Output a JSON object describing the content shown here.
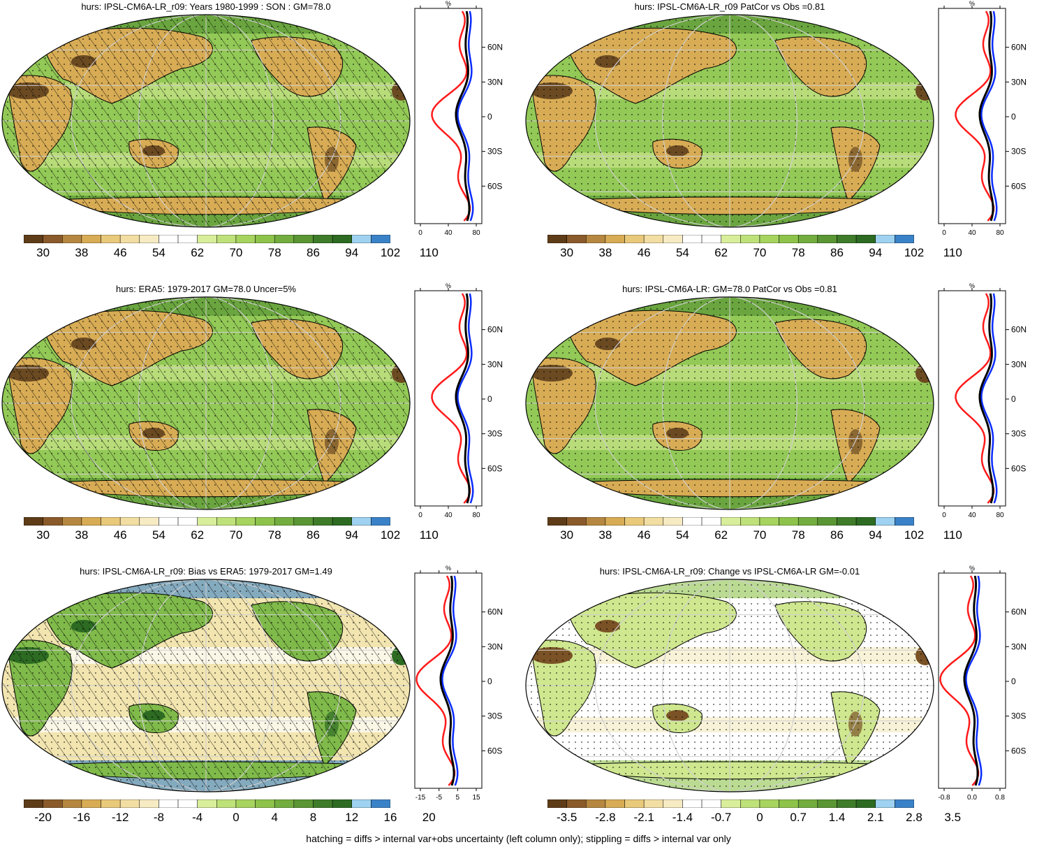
{
  "panels": [
    {
      "title": "hurs: IPSL-CM6A-LR_r09: Years 1980-1999 : SON : GM=78.0",
      "map_type": "abs",
      "hatched": true,
      "colorbar_labels": [
        "30",
        "38",
        "46",
        "54",
        "62",
        "70",
        "78",
        "86",
        "94",
        "102",
        "110"
      ],
      "colorbar_colors": [
        "#5e3c18",
        "#8a5a2a",
        "#b58740",
        "#d8ac55",
        "#e9c97a",
        "#f2dea3",
        "#f7ebc3",
        "#ffffff",
        "#ffffff",
        "#d9ee9a",
        "#bfe17a",
        "#a6d45f",
        "#8dc34b",
        "#73ad3f",
        "#5a9634",
        "#3f7c2a",
        "#2d6b23",
        "#9ed2f0",
        "#3a82c8"
      ],
      "profile": {
        "ticks": [
          "0",
          "40",
          "80"
        ],
        "unit": "%",
        "lat_labels": [
          "60N",
          "30N",
          "0",
          "30S",
          "60S"
        ]
      }
    },
    {
      "title": "hurs: IPSL-CM6A-LR_r09 PatCor vs Obs =0.81",
      "map_type": "abs",
      "hatched": false,
      "colorbar_labels": [
        "30",
        "38",
        "46",
        "54",
        "62",
        "70",
        "78",
        "86",
        "94",
        "102",
        "110"
      ],
      "colorbar_colors": [
        "#5e3c18",
        "#8a5a2a",
        "#b58740",
        "#d8ac55",
        "#e9c97a",
        "#f2dea3",
        "#f7ebc3",
        "#ffffff",
        "#ffffff",
        "#d9ee9a",
        "#bfe17a",
        "#a6d45f",
        "#8dc34b",
        "#73ad3f",
        "#5a9634",
        "#3f7c2a",
        "#2d6b23",
        "#9ed2f0",
        "#3a82c8"
      ],
      "profile": {
        "ticks": [
          "0",
          "40",
          "80"
        ],
        "unit": "%",
        "lat_labels": [
          "60N",
          "30N",
          "0",
          "30S",
          "60S"
        ]
      }
    },
    {
      "title": "hurs: ERA5: 1979-2017 GM=78.0 Uncer=5%",
      "map_type": "abs",
      "hatched": true,
      "colorbar_labels": [
        "30",
        "38",
        "46",
        "54",
        "62",
        "70",
        "78",
        "86",
        "94",
        "102",
        "110"
      ],
      "colorbar_colors": [
        "#5e3c18",
        "#8a5a2a",
        "#b58740",
        "#d8ac55",
        "#e9c97a",
        "#f2dea3",
        "#f7ebc3",
        "#ffffff",
        "#ffffff",
        "#d9ee9a",
        "#bfe17a",
        "#a6d45f",
        "#8dc34b",
        "#73ad3f",
        "#5a9634",
        "#3f7c2a",
        "#2d6b23",
        "#9ed2f0",
        "#3a82c8"
      ],
      "profile": {
        "ticks": [
          "0",
          "40",
          "80"
        ],
        "unit": "%",
        "lat_labels": [
          "60N",
          "30N",
          "0",
          "30S",
          "60S"
        ]
      }
    },
    {
      "title": "hurs: IPSL-CM6A-LR: GM=78.0 PatCor vs Obs =0.81",
      "map_type": "abs",
      "hatched": false,
      "colorbar_labels": [
        "30",
        "38",
        "46",
        "54",
        "62",
        "70",
        "78",
        "86",
        "94",
        "102",
        "110"
      ],
      "colorbar_colors": [
        "#5e3c18",
        "#8a5a2a",
        "#b58740",
        "#d8ac55",
        "#e9c97a",
        "#f2dea3",
        "#f7ebc3",
        "#ffffff",
        "#ffffff",
        "#d9ee9a",
        "#bfe17a",
        "#a6d45f",
        "#8dc34b",
        "#73ad3f",
        "#5a9634",
        "#3f7c2a",
        "#2d6b23",
        "#9ed2f0",
        "#3a82c8"
      ],
      "profile": {
        "ticks": [
          "0",
          "40",
          "80"
        ],
        "unit": "%",
        "lat_labels": [
          "60N",
          "30N",
          "0",
          "30S",
          "60S"
        ]
      }
    },
    {
      "title": "hurs: IPSL-CM6A-LR_r09: Bias vs ERA5: 1979-2017  GM=1.49",
      "map_type": "bias",
      "hatched": true,
      "colorbar_labels": [
        "-20",
        "-16",
        "-12",
        "-8",
        "-4",
        "0",
        "4",
        "8",
        "12",
        "16",
        "20"
      ],
      "colorbar_colors": [
        "#5e3c18",
        "#8a5a2a",
        "#b58740",
        "#d8ac55",
        "#e9c97a",
        "#f2dea3",
        "#f7ebc3",
        "#ffffff",
        "#ffffff",
        "#d9ee9a",
        "#bfe17a",
        "#a6d45f",
        "#8dc34b",
        "#73ad3f",
        "#5a9634",
        "#3f7c2a",
        "#2d6b23",
        "#9ed2f0",
        "#3a82c8"
      ],
      "profile": {
        "ticks": [
          "-15",
          "-5",
          "5",
          "15"
        ],
        "unit": "%",
        "lat_labels": [
          "60N",
          "30N",
          "0",
          "30S",
          "60S"
        ]
      }
    },
    {
      "title": "hurs: IPSL-CM6A-LR_r09: Change vs IPSL-CM6A-LR GM=-0.01",
      "map_type": "change",
      "hatched": false,
      "colorbar_labels": [
        "-3.5",
        "-2.8",
        "-2.1",
        "-1.4",
        "-0.7",
        "0",
        "0.7",
        "1.4",
        "2.1",
        "2.8",
        "3.5"
      ],
      "colorbar_colors": [
        "#5e3c18",
        "#8a5a2a",
        "#b58740",
        "#d8ac55",
        "#e9c97a",
        "#f2dea3",
        "#f7ebc3",
        "#ffffff",
        "#ffffff",
        "#d9ee9a",
        "#bfe17a",
        "#a6d45f",
        "#8dc34b",
        "#73ad3f",
        "#5a9634",
        "#3f7c2a",
        "#2d6b23",
        "#9ed2f0",
        "#3a82c8"
      ],
      "profile": {
        "ticks": [
          "-0.8",
          "0.0",
          "0.8"
        ],
        "unit": "%",
        "lat_labels": [
          "60N",
          "30N",
          "0",
          "30S",
          "60S"
        ]
      }
    }
  ],
  "footer": "hatching = diffs > internal var+obs uncertainty (left column only); stippling = diffs > internal var only"
}
